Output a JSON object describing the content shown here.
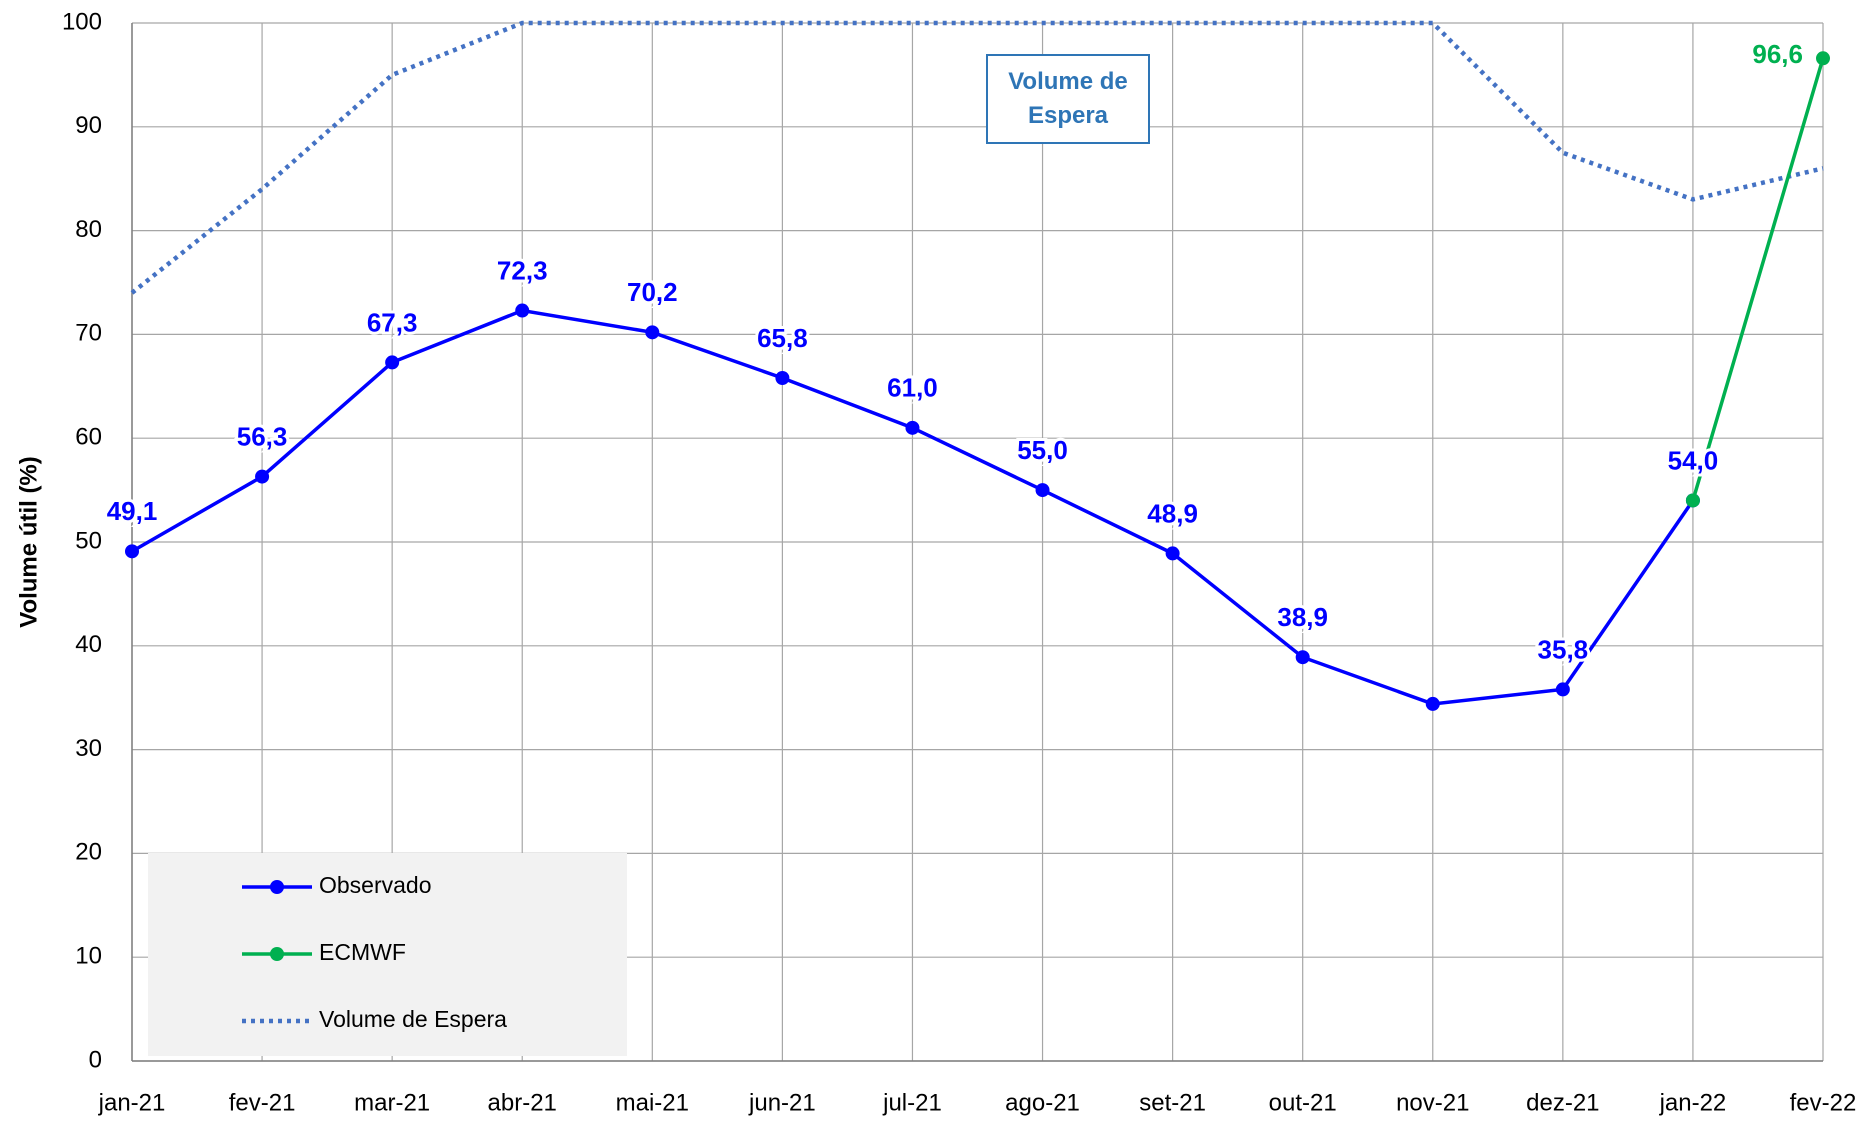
{
  "chart_data": {
    "type": "line",
    "y_label": "Volume útil (%)",
    "annotation": "Volume de Espera",
    "categories": [
      "jan-21",
      "fev-21",
      "mar-21",
      "abr-21",
      "mai-21",
      "jun-21",
      "jul-21",
      "ago-21",
      "set-21",
      "out-21",
      "nov-21",
      "dez-21",
      "jan-22",
      "fev-22"
    ],
    "ylim": [
      0,
      100
    ],
    "yticks": [
      0,
      10,
      20,
      30,
      40,
      50,
      60,
      70,
      80,
      90,
      100
    ],
    "grid": true,
    "series": [
      {
        "name": "Observado",
        "color": "#0000ff",
        "marker": true,
        "dashed": false,
        "values": [
          49.1,
          56.3,
          67.3,
          72.3,
          70.2,
          65.8,
          61.0,
          55.0,
          48.9,
          38.9,
          34.4,
          35.8,
          54.0,
          null
        ],
        "value_labels": [
          "49,1",
          "56,3",
          "67,3",
          "72,3",
          "70,2",
          "65,8",
          "61,0",
          "55,0",
          "48,9",
          "38,9",
          null,
          "35,8",
          "54,0",
          null
        ]
      },
      {
        "name": "ECMWF",
        "color": "#00b050",
        "marker": true,
        "dashed": false,
        "values": [
          null,
          null,
          null,
          null,
          null,
          null,
          null,
          null,
          null,
          null,
          null,
          null,
          54.0,
          96.6
        ],
        "value_labels": [
          null,
          null,
          null,
          null,
          null,
          null,
          null,
          null,
          null,
          null,
          null,
          null,
          null,
          "96,6"
        ]
      },
      {
        "name": "Volume de Espera",
        "color": "#4472c4",
        "marker": false,
        "dashed": true,
        "values": [
          74,
          84,
          95,
          100,
          100,
          100,
          100,
          100,
          100,
          100,
          100,
          87.5,
          83,
          86
        ]
      }
    ]
  }
}
